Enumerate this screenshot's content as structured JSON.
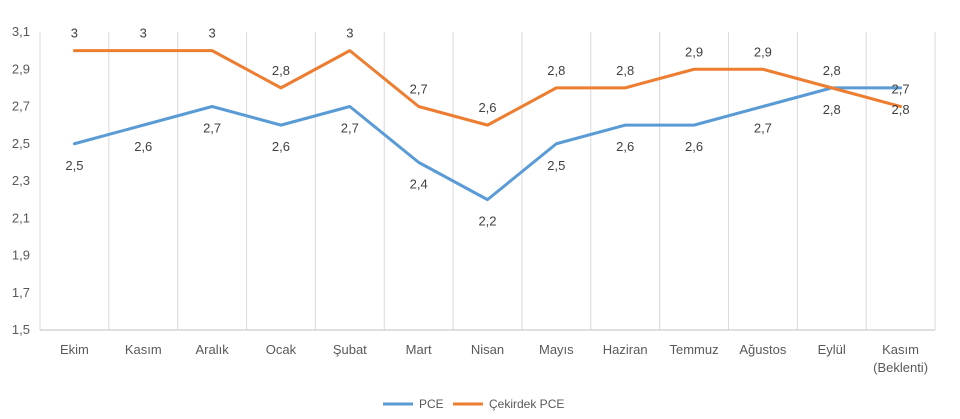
{
  "chart_data": {
    "type": "line",
    "categories": [
      "Ekim",
      "Kasım",
      "Aralık",
      "Ocak",
      "Şubat",
      "Mart",
      "Nisan",
      "Mayıs",
      "Haziran",
      "Temmuz",
      "Ağustos",
      "Eylül",
      "Kasım\n(Beklenti)"
    ],
    "series": [
      {
        "name": "PCE",
        "color": "#5b9bd5",
        "values": [
          2.5,
          2.6,
          2.7,
          2.6,
          2.7,
          2.4,
          2.2,
          2.5,
          2.6,
          2.6,
          2.7,
          2.8,
          2.8
        ],
        "labels": [
          "2,5",
          "2,6",
          "2,7",
          "2,6",
          "2,7",
          "2,4",
          "2,2",
          "2,5",
          "2,6",
          "2,6",
          "2,7",
          "2,8",
          "2,8"
        ],
        "label_position": "below"
      },
      {
        "name": "Çekirdek PCE",
        "color": "#ed7d31",
        "values": [
          3.0,
          3.0,
          3.0,
          2.8,
          3.0,
          2.7,
          2.6,
          2.8,
          2.8,
          2.9,
          2.9,
          2.8,
          2.7
        ],
        "labels": [
          "3",
          "3",
          "3",
          "2,8",
          "3",
          "2,7",
          "2,6",
          "2,8",
          "2,8",
          "2,9",
          "2,9",
          "2,8",
          "2,7"
        ],
        "label_position": "above"
      }
    ],
    "ylim": [
      1.5,
      3.1
    ],
    "yticks": [
      1.5,
      1.7,
      1.9,
      2.1,
      2.3,
      2.5,
      2.7,
      2.9,
      3.1
    ],
    "ytick_labels": [
      "1,5",
      "1,7",
      "1,9",
      "2,1",
      "2,3",
      "2,5",
      "2,7",
      "2,9",
      "3,1"
    ],
    "title": "",
    "xlabel": "",
    "ylabel": "",
    "grid": "vertical",
    "legend": "bottom-center"
  }
}
